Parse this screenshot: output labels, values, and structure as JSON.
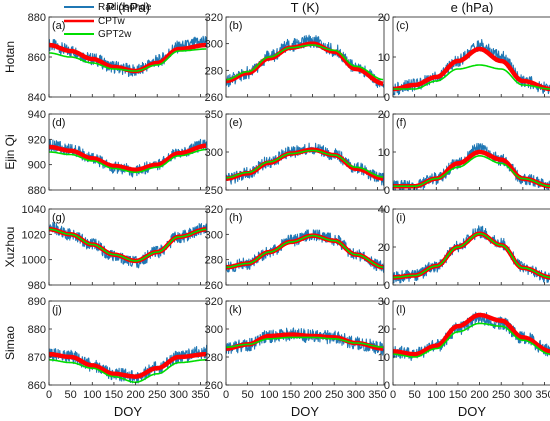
{
  "figure": {
    "columns": [
      "P (hPa)",
      "T (K)",
      "e (hPa)"
    ],
    "rows": [
      "Hotan",
      "Ejin Qi",
      "Xuzhou",
      "Simao"
    ],
    "xlabel": "DOY",
    "xticks": [
      0,
      50,
      100,
      150,
      200,
      250,
      300,
      350
    ],
    "legend": [
      {
        "label": "Radiosonde",
        "color": "#1f77b4"
      },
      {
        "label": "CPTw",
        "color": "#ff0000"
      },
      {
        "label": "GPT2w",
        "color": "#00dd00"
      }
    ],
    "colors": {
      "radiosonde": "#1f77b4",
      "cptw": "#ff0000",
      "gpt2w": "#00dd00"
    }
  },
  "chart_data": [
    {
      "type": "line",
      "panel_label": "(a)",
      "station": "Hotan",
      "quantity": "P (hPa)",
      "xlim": [
        0,
        365
      ],
      "ylim": [
        840,
        880
      ],
      "yticks": [
        840,
        860,
        880
      ],
      "x": [
        0,
        50,
        100,
        150,
        200,
        250,
        300,
        365
      ],
      "series": [
        {
          "name": "Radiosonde",
          "values": [
            866,
            863,
            859,
            855,
            853,
            858,
            865,
            868
          ]
        },
        {
          "name": "CPTw",
          "values": [
            866,
            863,
            859,
            855,
            853,
            857,
            864,
            866
          ]
        },
        {
          "name": "GPT2w",
          "values": [
            862,
            860,
            857,
            854,
            853,
            856,
            863,
            864
          ]
        }
      ]
    },
    {
      "type": "line",
      "panel_label": "(b)",
      "station": "Hotan",
      "quantity": "T (K)",
      "xlim": [
        0,
        365
      ],
      "ylim": [
        260,
        320
      ],
      "yticks": [
        260,
        280,
        300,
        320
      ],
      "x": [
        0,
        50,
        100,
        150,
        200,
        250,
        300,
        365
      ],
      "series": [
        {
          "name": "Radiosonde",
          "values": [
            272,
            278,
            290,
            299,
            302,
            295,
            282,
            270
          ]
        },
        {
          "name": "CPTw",
          "values": [
            272,
            278,
            289,
            297,
            300,
            294,
            281,
            270
          ]
        },
        {
          "name": "GPT2w",
          "values": [
            273,
            279,
            290,
            297,
            299,
            295,
            283,
            273
          ]
        }
      ]
    },
    {
      "type": "line",
      "panel_label": "(c)",
      "station": "Hotan",
      "quantity": "e (hPa)",
      "xlim": [
        0,
        365
      ],
      "ylim": [
        0,
        20
      ],
      "yticks": [
        0,
        10,
        20
      ],
      "x": [
        0,
        50,
        100,
        150,
        200,
        250,
        300,
        365
      ],
      "series": [
        {
          "name": "Radiosonde",
          "values": [
            2,
            3,
            5,
            9,
            13,
            10,
            4,
            2
          ]
        },
        {
          "name": "CPTw",
          "values": [
            2,
            3,
            5,
            9,
            12,
            9,
            4,
            2
          ]
        },
        {
          "name": "GPT2w",
          "values": [
            2,
            2,
            4,
            7,
            8,
            7,
            3,
            2
          ]
        }
      ]
    },
    {
      "type": "line",
      "panel_label": "(d)",
      "station": "Ejin Qi",
      "quantity": "P (hPa)",
      "xlim": [
        0,
        365
      ],
      "ylim": [
        880,
        940
      ],
      "yticks": [
        880,
        900,
        920,
        940
      ],
      "x": [
        0,
        50,
        100,
        150,
        200,
        250,
        300,
        365
      ],
      "series": [
        {
          "name": "Radiosonde",
          "values": [
            915,
            912,
            905,
            898,
            895,
            900,
            910,
            916
          ]
        },
        {
          "name": "CPTw",
          "values": [
            914,
            911,
            905,
            899,
            896,
            900,
            909,
            915
          ]
        },
        {
          "name": "GPT2w",
          "values": [
            910,
            908,
            903,
            897,
            894,
            898,
            907,
            912
          ]
        }
      ]
    },
    {
      "type": "line",
      "panel_label": "(e)",
      "station": "Ejin Qi",
      "quantity": "T (K)",
      "xlim": [
        0,
        365
      ],
      "ylim": [
        250,
        350
      ],
      "yticks": [
        250,
        300,
        350
      ],
      "x": [
        0,
        50,
        100,
        150,
        200,
        250,
        300,
        365
      ],
      "series": [
        {
          "name": "Radiosonde",
          "values": [
            264,
            272,
            287,
            300,
            305,
            297,
            279,
            264
          ]
        },
        {
          "name": "CPTw",
          "values": [
            265,
            272,
            286,
            298,
            303,
            296,
            278,
            265
          ]
        },
        {
          "name": "GPT2w",
          "values": [
            266,
            273,
            287,
            298,
            302,
            296,
            280,
            267
          ]
        }
      ]
    },
    {
      "type": "line",
      "panel_label": "(f)",
      "station": "Ejin Qi",
      "quantity": "e (hPa)",
      "xlim": [
        0,
        365
      ],
      "ylim": [
        0,
        20
      ],
      "yticks": [
        0,
        10,
        20
      ],
      "x": [
        0,
        50,
        100,
        150,
        200,
        250,
        300,
        365
      ],
      "series": [
        {
          "name": "Radiosonde",
          "values": [
            1,
            1,
            3,
            7,
            11,
            8,
            3,
            1
          ]
        },
        {
          "name": "CPTw",
          "values": [
            1,
            1,
            3,
            7,
            10,
            8,
            3,
            1
          ]
        },
        {
          "name": "GPT2w",
          "values": [
            1,
            1,
            3,
            6,
            9,
            7,
            3,
            1
          ]
        }
      ]
    },
    {
      "type": "line",
      "panel_label": "(g)",
      "station": "Xuzhou",
      "quantity": "P (hPa)",
      "xlim": [
        0,
        365
      ],
      "ylim": [
        980,
        1040
      ],
      "yticks": [
        980,
        1000,
        1020,
        1040
      ],
      "x": [
        0,
        50,
        100,
        150,
        200,
        250,
        300,
        365
      ],
      "series": [
        {
          "name": "Radiosonde",
          "values": [
            1025,
            1020,
            1012,
            1003,
            998,
            1006,
            1018,
            1025
          ]
        },
        {
          "name": "CPTw",
          "values": [
            1024,
            1020,
            1012,
            1004,
            999,
            1006,
            1018,
            1024
          ]
        },
        {
          "name": "GPT2w",
          "values": [
            1024,
            1020,
            1012,
            1004,
            999,
            1006,
            1018,
            1024
          ]
        }
      ]
    },
    {
      "type": "line",
      "panel_label": "(h)",
      "station": "Xuzhou",
      "quantity": "T (K)",
      "xlim": [
        0,
        365
      ],
      "ylim": [
        260,
        320
      ],
      "yticks": [
        260,
        280,
        300,
        320
      ],
      "x": [
        0,
        50,
        100,
        150,
        200,
        250,
        300,
        365
      ],
      "series": [
        {
          "name": "Radiosonde",
          "values": [
            274,
            277,
            286,
            295,
            300,
            296,
            284,
            274
          ]
        },
        {
          "name": "CPTw",
          "values": [
            274,
            277,
            286,
            294,
            299,
            295,
            284,
            274
          ]
        },
        {
          "name": "GPT2w",
          "values": [
            274,
            277,
            286,
            294,
            299,
            295,
            284,
            274
          ]
        }
      ]
    },
    {
      "type": "line",
      "panel_label": "(i)",
      "station": "Xuzhou",
      "quantity": "e (hPa)",
      "xlim": [
        0,
        365
      ],
      "ylim": [
        0,
        40
      ],
      "yticks": [
        0,
        20,
        40
      ],
      "x": [
        0,
        50,
        100,
        150,
        200,
        250,
        300,
        365
      ],
      "series": [
        {
          "name": "Radiosonde",
          "values": [
            4,
            5,
            10,
            20,
            28,
            22,
            9,
            4
          ]
        },
        {
          "name": "CPTw",
          "values": [
            4,
            5,
            10,
            20,
            27,
            21,
            9,
            4
          ]
        },
        {
          "name": "GPT2w",
          "values": [
            4,
            5,
            10,
            20,
            27,
            21,
            9,
            4
          ]
        }
      ]
    },
    {
      "type": "line",
      "panel_label": "(j)",
      "station": "Simao",
      "quantity": "P (hPa)",
      "xlim": [
        0,
        365
      ],
      "ylim": [
        860,
        890
      ],
      "yticks": [
        860,
        870,
        880,
        890
      ],
      "x": [
        0,
        50,
        100,
        150,
        200,
        250,
        300,
        365
      ],
      "series": [
        {
          "name": "Radiosonde",
          "values": [
            871,
            870,
            867,
            864,
            863,
            866,
            870,
            872
          ]
        },
        {
          "name": "CPTw",
          "values": [
            871,
            870,
            867,
            864,
            863,
            866,
            870,
            871
          ]
        },
        {
          "name": "GPT2w",
          "values": [
            869,
            868,
            866,
            863,
            861,
            864,
            868,
            869
          ]
        }
      ]
    },
    {
      "type": "line",
      "panel_label": "(k)",
      "station": "Simao",
      "quantity": "T (K)",
      "xlim": [
        0,
        365
      ],
      "ylim": [
        260,
        320
      ],
      "yticks": [
        260,
        280,
        300,
        320
      ],
      "x": [
        0,
        50,
        100,
        150,
        200,
        250,
        300,
        365
      ],
      "series": [
        {
          "name": "Radiosonde",
          "values": [
            286,
            289,
            295,
            296,
            295,
            294,
            290,
            286
          ]
        },
        {
          "name": "CPTw",
          "values": [
            286,
            289,
            295,
            296,
            295,
            294,
            290,
            286
          ]
        },
        {
          "name": "GPT2w",
          "values": [
            287,
            289,
            293,
            294,
            294,
            293,
            290,
            287
          ]
        }
      ]
    },
    {
      "type": "line",
      "panel_label": "(l)",
      "station": "Simao",
      "quantity": "e (hPa)",
      "xlim": [
        0,
        365
      ],
      "ylim": [
        0,
        30
      ],
      "yticks": [
        0,
        10,
        20,
        30
      ],
      "x": [
        0,
        50,
        100,
        150,
        200,
        250,
        300,
        365
      ],
      "series": [
        {
          "name": "Radiosonde",
          "values": [
            12,
            11,
            14,
            20,
            24,
            22,
            17,
            12
          ]
        },
        {
          "name": "CPTw",
          "values": [
            12,
            11,
            14,
            21,
            25,
            23,
            17,
            12
          ]
        },
        {
          "name": "GPT2w",
          "values": [
            11,
            10,
            13,
            19,
            22,
            21,
            16,
            11
          ]
        }
      ]
    }
  ]
}
